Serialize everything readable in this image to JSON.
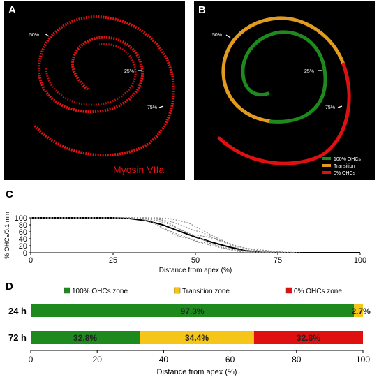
{
  "panel_a": {
    "letter": "A",
    "stain_label": "Myosin VIIa",
    "markers": [
      "50%",
      "25%",
      "75%"
    ]
  },
  "panel_b": {
    "letter": "B",
    "markers": [
      "50%",
      "25%",
      "75%"
    ],
    "legend": [
      {
        "label": "100% OHCs",
        "color": "#1e8a1e"
      },
      {
        "label": "Transition",
        "color": "#e39b1f"
      },
      {
        "label": "0% OHCs",
        "color": "#e01010"
      }
    ]
  },
  "chart_data": [
    {
      "panel": "C",
      "type": "line",
      "xlabel": "Distance from apex (%)",
      "ylabel": "% OHCs/0.1 mm",
      "xlim": [
        0,
        100
      ],
      "ylim": [
        0,
        100
      ],
      "xticks": [
        0,
        25,
        50,
        75,
        100
      ],
      "yticks": [
        0,
        20,
        40,
        60,
        80,
        100
      ],
      "series": [
        {
          "style": "mean",
          "x": [
            0,
            10,
            20,
            25,
            30,
            35,
            40,
            45,
            50,
            55,
            60,
            65,
            70,
            75,
            100
          ],
          "y": [
            100,
            100,
            100,
            100,
            98,
            92,
            80,
            62,
            45,
            30,
            17,
            6,
            1,
            0,
            0
          ]
        },
        {
          "style": "individual",
          "x": [
            0,
            30,
            35,
            38,
            41,
            44,
            47,
            50,
            53,
            56,
            59,
            62,
            65,
            70
          ],
          "y": [
            100,
            100,
            97,
            93,
            85,
            73,
            60,
            46,
            35,
            22,
            12,
            5,
            1,
            0
          ]
        },
        {
          "style": "individual",
          "x": [
            0,
            35,
            39,
            43,
            46,
            49,
            52,
            55,
            58,
            61,
            64,
            68,
            72,
            78
          ],
          "y": [
            100,
            100,
            96,
            88,
            78,
            66,
            58,
            45,
            33,
            20,
            10,
            4,
            1,
            0
          ]
        },
        {
          "style": "individual",
          "x": [
            0,
            33,
            36,
            40,
            44,
            48,
            51,
            54,
            57,
            60,
            63,
            66,
            70,
            74
          ],
          "y": [
            100,
            100,
            95,
            70,
            50,
            40,
            30,
            28,
            20,
            12,
            8,
            3,
            1,
            0
          ]
        },
        {
          "style": "individual",
          "x": [
            0,
            38,
            42,
            45,
            48,
            51,
            54,
            57,
            60,
            63,
            66,
            70,
            74,
            80
          ],
          "y": [
            100,
            100,
            98,
            92,
            85,
            70,
            55,
            40,
            28,
            18,
            10,
            5,
            2,
            0
          ]
        },
        {
          "style": "individual",
          "x": [
            0,
            36,
            40,
            43,
            46,
            49,
            52,
            55,
            58,
            62,
            66,
            70,
            75,
            82
          ],
          "y": [
            100,
            100,
            93,
            80,
            62,
            52,
            48,
            42,
            32,
            20,
            12,
            8,
            3,
            0
          ]
        },
        {
          "style": "individual",
          "x": [
            0,
            32,
            36,
            40,
            44,
            48,
            52,
            56,
            60,
            64,
            68,
            72
          ],
          "y": [
            100,
            100,
            90,
            72,
            55,
            42,
            28,
            18,
            10,
            6,
            2,
            0
          ]
        }
      ]
    },
    {
      "panel": "D",
      "type": "bar",
      "orientation": "horizontal",
      "stacked": true,
      "xlabel": "Distance from apex (%)",
      "xlim": [
        0,
        100
      ],
      "xticks": [
        0,
        20,
        40,
        60,
        80,
        100
      ],
      "categories": [
        "24 h",
        "72 h"
      ],
      "series": [
        {
          "name": "100% OHCs zone",
          "color": "#1e8a1e",
          "values": [
            97.3,
            32.8
          ],
          "labels": [
            "97.3%",
            "32.8%"
          ]
        },
        {
          "name": "Transition zone",
          "color": "#f5c518",
          "values": [
            2.7,
            34.4
          ],
          "labels": [
            "2.7%",
            "34.4%"
          ]
        },
        {
          "name": "0% OHCs zone",
          "color": "#e01010",
          "values": [
            0,
            32.8
          ],
          "labels": [
            "",
            "32.8%"
          ]
        }
      ]
    }
  ],
  "panel_c_letter": "C",
  "panel_d_letter": "D"
}
